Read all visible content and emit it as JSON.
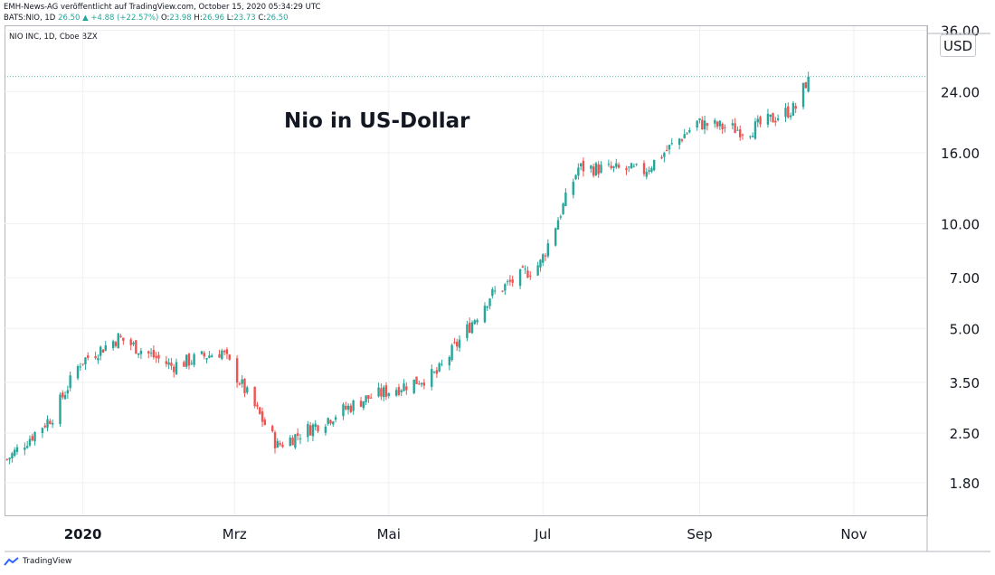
{
  "header": {
    "line1": "EMH-News-AG veröffentlicht auf TradingView.com, October 15, 2020 05:34:29 UTC",
    "line2_symbol": "BATS:NIO, 1D",
    "line2_last": "26.50",
    "line2_change": "▲ +4.88 (+22.57%)",
    "line2_o_label": "O:",
    "line2_o": "23.98",
    "line2_h_label": "H:",
    "line2_h": "26.96",
    "line2_l_label": "L:",
    "line2_l": "23.73",
    "line2_c_label": "C:",
    "line2_c": "26.50"
  },
  "instrument_label": "NIO INC, 1D, Cboe BZX",
  "currency_button": "USD",
  "footer_brand": "TradingView",
  "colors": {
    "up": "#26a69a",
    "down": "#ef5350",
    "grid": "#eef0f4",
    "axis": "#131722"
  },
  "chart_data": {
    "type": "candlestick",
    "title": "Nio in US-Dollar",
    "y_scale": "log",
    "y_ticks": [
      "1.80",
      "2.50",
      "3.50",
      "5.00",
      "7.00",
      "10.00",
      "16.00",
      "24.00",
      "36.00"
    ],
    "ylim": [
      1.45,
      37
    ],
    "x_ticks": [
      "2020",
      "Mrz",
      "Mai",
      "Jul",
      "Sep",
      "Nov"
    ],
    "x_range": [
      "2019-12-01",
      "2020-11-30"
    ],
    "last_price_line": 26.5,
    "monthly_anchors": [
      {
        "date": "2019-12-02",
        "close": 2.1
      },
      {
        "date": "2019-12-20",
        "close": 2.8
      },
      {
        "date": "2019-12-31",
        "close": 4.0
      },
      {
        "date": "2020-01-15",
        "close": 4.7
      },
      {
        "date": "2020-02-05",
        "close": 3.9
      },
      {
        "date": "2020-02-25",
        "close": 4.3
      },
      {
        "date": "2020-03-18",
        "close": 2.3
      },
      {
        "date": "2020-04-20",
        "close": 3.1
      },
      {
        "date": "2020-05-20",
        "close": 3.7
      },
      {
        "date": "2020-06-10",
        "close": 6.2
      },
      {
        "date": "2020-06-30",
        "close": 7.7
      },
      {
        "date": "2020-07-15",
        "close": 14.5
      },
      {
        "date": "2020-08-10",
        "close": 14.2
      },
      {
        "date": "2020-08-31",
        "close": 19.5
      },
      {
        "date": "2020-09-20",
        "close": 18.5
      },
      {
        "date": "2020-10-09",
        "close": 21.6
      },
      {
        "date": "2020-10-14",
        "close": 26.5
      }
    ]
  }
}
